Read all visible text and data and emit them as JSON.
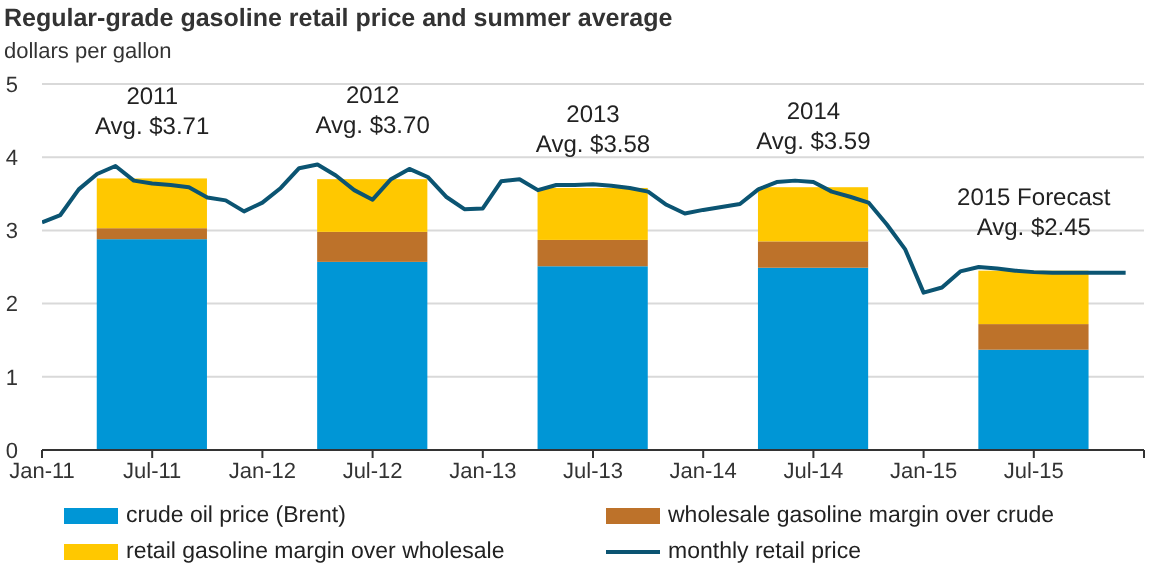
{
  "chart_data": {
    "type": "bar",
    "title": "Regular-grade gasoline retail price and summer average",
    "subtitle": "dollars per gallon",
    "stacked": true,
    "grid": "y",
    "legend": "bottom",
    "xlim": [
      "2011-01",
      "2016-01"
    ],
    "xticks": [
      {
        "value": "2011-01",
        "label": "Jan-11"
      },
      {
        "value": "2011-07",
        "label": "Jul-11"
      },
      {
        "value": "2012-01",
        "label": "Jan-12"
      },
      {
        "value": "2012-07",
        "label": "Jul-12"
      },
      {
        "value": "2013-01",
        "label": "Jan-13"
      },
      {
        "value": "2013-07",
        "label": "Jul-13"
      },
      {
        "value": "2014-01",
        "label": "Jan-14"
      },
      {
        "value": "2014-07",
        "label": "Jul-14"
      },
      {
        "value": "2015-01",
        "label": "Jan-15"
      },
      {
        "value": "2015-07",
        "label": "Jul-15"
      },
      {
        "value": "2016-01",
        "label": null
      }
    ],
    "ylim": [
      0,
      5
    ],
    "yticks": [
      0,
      1,
      2,
      3,
      4,
      5
    ],
    "x": [
      "2011-07",
      "2012-07",
      "2013-07",
      "2014-07",
      "2015-07"
    ],
    "series": [
      {
        "name": "crude oil price (Brent)",
        "color": "#0096d6",
        "values": [
          2.88,
          2.57,
          2.51,
          2.49,
          1.37
        ]
      },
      {
        "name": "wholesale gasoline margin over crude",
        "color": "#bd722a",
        "values": [
          0.15,
          0.41,
          0.36,
          0.36,
          0.35
        ]
      },
      {
        "name": "retail gasoline margin over wholesale",
        "color": "#ffc800",
        "values": [
          0.68,
          0.72,
          0.71,
          0.74,
          0.73
        ]
      },
      {
        "name": "monthly retail price",
        "type": "line",
        "color": "#0b5472",
        "x": [
          "2011-01",
          "2011-02",
          "2011-03",
          "2011-04",
          "2011-05",
          "2011-06",
          "2011-07",
          "2011-08",
          "2011-09",
          "2011-10",
          "2011-11",
          "2011-12",
          "2012-01",
          "2012-02",
          "2012-03",
          "2012-04",
          "2012-05",
          "2012-06",
          "2012-07",
          "2012-08",
          "2012-09",
          "2012-10",
          "2012-11",
          "2012-12",
          "2013-01",
          "2013-02",
          "2013-03",
          "2013-04",
          "2013-05",
          "2013-06",
          "2013-07",
          "2013-08",
          "2013-09",
          "2013-10",
          "2013-11",
          "2013-12",
          "2014-01",
          "2014-02",
          "2014-03",
          "2014-04",
          "2014-05",
          "2014-06",
          "2014-07",
          "2014-08",
          "2014-09",
          "2014-10",
          "2014-11",
          "2014-12",
          "2015-01",
          "2015-02",
          "2015-03",
          "2015-04",
          "2015-05",
          "2015-06",
          "2015-07",
          "2015-08",
          "2015-09",
          "2015-10",
          "2015-11",
          "2015-12"
        ],
        "values": [
          3.11,
          3.21,
          3.56,
          3.77,
          3.88,
          3.68,
          3.64,
          3.62,
          3.59,
          3.45,
          3.41,
          3.26,
          3.38,
          3.58,
          3.85,
          3.9,
          3.75,
          3.55,
          3.42,
          3.7,
          3.84,
          3.73,
          3.46,
          3.29,
          3.3,
          3.67,
          3.7,
          3.55,
          3.62,
          3.62,
          3.63,
          3.61,
          3.58,
          3.53,
          3.35,
          3.23,
          3.28,
          3.32,
          3.36,
          3.56,
          3.66,
          3.68,
          3.66,
          3.53,
          3.46,
          3.38,
          3.08,
          2.74,
          2.15,
          2.22,
          2.44,
          2.5,
          2.48,
          2.45,
          2.43,
          2.42,
          2.42,
          2.42,
          2.42,
          2.42
        ]
      }
    ],
    "annotations": [
      "2011\nAvg. $3.71",
      "2012\nAvg. $3.70",
      "2013\nAvg. $3.58",
      "2014\nAvg. $3.59",
      "2015 Forecast\nAvg. $2.45"
    ]
  }
}
